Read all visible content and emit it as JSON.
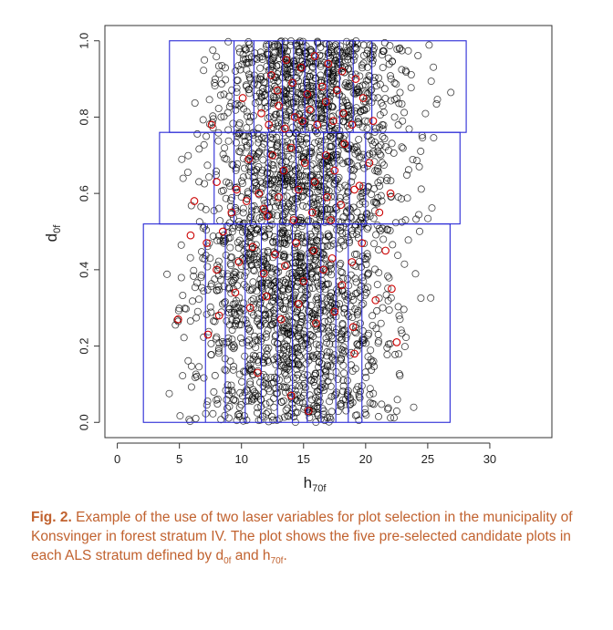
{
  "chart_data": {
    "type": "scatter",
    "xlabel": "h",
    "xlabel_sub": "70f",
    "ylabel": "d",
    "ylabel_sub": "0f",
    "xlim": [
      -1,
      35
    ],
    "ylim": [
      -0.04,
      1.04
    ],
    "x_ticks": [
      0,
      5,
      10,
      15,
      20,
      25,
      30
    ],
    "x_tick_labels": [
      "0",
      "5",
      "10",
      "15",
      "20",
      "25",
      "30"
    ],
    "y_ticks": [
      0.0,
      0.2,
      0.4,
      0.6,
      0.8,
      1.0
    ],
    "y_tick_labels": [
      "0.0",
      "0.2",
      "0.4",
      "0.6",
      "0.8",
      "1.0"
    ],
    "grid": false,
    "colors": {
      "all_plots": "#000000",
      "selected_plots": "#cc0000",
      "strata_boxes": "#2a2ad6"
    },
    "strata": [
      {
        "d_range": [
          0.0,
          0.52
        ],
        "h_range": [
          2.1,
          26.8
        ],
        "h_breaks": [
          7.1,
          8.7,
          10.3,
          11.6,
          12.9,
          14.1,
          15.3,
          16.4,
          17.6,
          18.6,
          19.7
        ]
      },
      {
        "d_range": [
          0.52,
          0.76
        ],
        "h_range": [
          3.4,
          27.6
        ],
        "h_breaks": [
          7.8,
          9.4,
          10.8,
          12.1,
          13.3,
          14.4,
          15.5,
          16.6,
          17.6,
          18.7,
          20.0
        ]
      },
      {
        "d_range": [
          0.76,
          1.0
        ],
        "h_range": [
          4.2,
          28.1
        ],
        "h_breaks": [
          9.4,
          11.0,
          12.2,
          13.3,
          14.2,
          15.1,
          16.0,
          16.9,
          17.9,
          19.0,
          20.5
        ]
      }
    ],
    "selected_points": [
      [
        12.4,
        0.91
      ],
      [
        13.6,
        0.95
      ],
      [
        14.8,
        0.93
      ],
      [
        15.9,
        0.96
      ],
      [
        17.0,
        0.94
      ],
      [
        18.1,
        0.92
      ],
      [
        12.9,
        0.87
      ],
      [
        14.1,
        0.89
      ],
      [
        15.3,
        0.86
      ],
      [
        16.5,
        0.88
      ],
      [
        17.7,
        0.87
      ],
      [
        19.2,
        0.9
      ],
      [
        11.6,
        0.81
      ],
      [
        13.0,
        0.83
      ],
      [
        14.3,
        0.8
      ],
      [
        15.5,
        0.82
      ],
      [
        16.8,
        0.84
      ],
      [
        18.2,
        0.81
      ],
      [
        19.8,
        0.85
      ],
      [
        12.2,
        0.78
      ],
      [
        13.5,
        0.77
      ],
      [
        14.9,
        0.79
      ],
      [
        16.1,
        0.78
      ],
      [
        17.4,
        0.79
      ],
      [
        18.9,
        0.78
      ],
      [
        10.1,
        0.85
      ],
      [
        7.6,
        0.78
      ],
      [
        20.6,
        0.79
      ],
      [
        8.0,
        0.63
      ],
      [
        9.6,
        0.61
      ],
      [
        10.6,
        0.69
      ],
      [
        11.4,
        0.6
      ],
      [
        12.5,
        0.7
      ],
      [
        13.4,
        0.66
      ],
      [
        14.0,
        0.72
      ],
      [
        15.1,
        0.68
      ],
      [
        15.9,
        0.63
      ],
      [
        16.8,
        0.7
      ],
      [
        17.5,
        0.66
      ],
      [
        18.3,
        0.73
      ],
      [
        19.1,
        0.61
      ],
      [
        20.3,
        0.68
      ],
      [
        10.4,
        0.58
      ],
      [
        11.8,
        0.56
      ],
      [
        13.0,
        0.59
      ],
      [
        14.6,
        0.61
      ],
      [
        15.7,
        0.55
      ],
      [
        16.9,
        0.59
      ],
      [
        18.0,
        0.57
      ],
      [
        19.5,
        0.62
      ],
      [
        9.2,
        0.55
      ],
      [
        12.1,
        0.54
      ],
      [
        14.2,
        0.53
      ],
      [
        17.2,
        0.53
      ],
      [
        21.1,
        0.55
      ],
      [
        6.2,
        0.58
      ],
      [
        22.0,
        0.6
      ],
      [
        5.9,
        0.49
      ],
      [
        7.2,
        0.47
      ],
      [
        8.5,
        0.5
      ],
      [
        9.8,
        0.42
      ],
      [
        10.9,
        0.46
      ],
      [
        11.8,
        0.39
      ],
      [
        12.7,
        0.44
      ],
      [
        13.5,
        0.41
      ],
      [
        14.4,
        0.47
      ],
      [
        15.0,
        0.37
      ],
      [
        15.8,
        0.45
      ],
      [
        16.6,
        0.4
      ],
      [
        17.3,
        0.43
      ],
      [
        18.1,
        0.36
      ],
      [
        18.9,
        0.42
      ],
      [
        19.7,
        0.47
      ],
      [
        8.0,
        0.4
      ],
      [
        9.5,
        0.34
      ],
      [
        10.7,
        0.3
      ],
      [
        12.0,
        0.33
      ],
      [
        13.2,
        0.27
      ],
      [
        14.6,
        0.31
      ],
      [
        16.0,
        0.26
      ],
      [
        17.5,
        0.29
      ],
      [
        19.0,
        0.25
      ],
      [
        20.8,
        0.32
      ],
      [
        7.3,
        0.23
      ],
      [
        8.2,
        0.28
      ],
      [
        11.3,
        0.13
      ],
      [
        14.0,
        0.07
      ],
      [
        15.4,
        0.03
      ],
      [
        19.1,
        0.18
      ],
      [
        22.1,
        0.35
      ],
      [
        22.5,
        0.21
      ],
      [
        4.9,
        0.27
      ],
      [
        21.6,
        0.45
      ]
    ]
  },
  "caption": {
    "fig_label": "Fig. 2.",
    "text_1": "Example of the use of two laser variables for plot selection in the municipality of Konsvinger in forest stratum IV. The plot shows the five pre-selected candidate plots in each ALS stratum defined by d",
    "sub_1": "0f",
    "text_2": " and h",
    "sub_2": "70f",
    "text_3": "."
  }
}
